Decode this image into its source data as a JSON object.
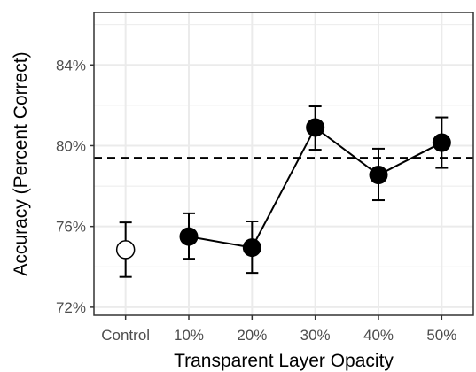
{
  "chart_data": {
    "type": "scatter",
    "xlabel": "Transparent Layer Opacity",
    "ylabel": "Accuracy (Percent Correct)",
    "categories": [
      "Control",
      "10%",
      "20%",
      "30%",
      "40%",
      "50%"
    ],
    "y_ticks": [
      72,
      76,
      80,
      84
    ],
    "y_tick_labels": [
      "72%",
      "76%",
      "80%",
      "84%"
    ],
    "ylim": [
      71.6,
      86.6
    ],
    "grid": true,
    "reference_line": {
      "y": 79.4,
      "style": "dashed"
    },
    "points": [
      {
        "x": "Control",
        "y": 74.85,
        "lower": 73.5,
        "upper": 76.2,
        "fill": "open"
      },
      {
        "x": "10%",
        "y": 75.5,
        "lower": 74.4,
        "upper": 76.65,
        "fill": "filled"
      },
      {
        "x": "20%",
        "y": 74.95,
        "lower": 73.7,
        "upper": 76.25,
        "fill": "filled"
      },
      {
        "x": "30%",
        "y": 80.9,
        "lower": 79.8,
        "upper": 81.95,
        "fill": "filled"
      },
      {
        "x": "40%",
        "y": 78.55,
        "lower": 77.3,
        "upper": 79.85,
        "fill": "filled"
      },
      {
        "x": "50%",
        "y": 80.15,
        "lower": 78.9,
        "upper": 81.4,
        "fill": "filled"
      }
    ],
    "connected_categories": [
      "10%",
      "20%",
      "30%",
      "40%",
      "50%"
    ],
    "colors": {
      "point": "#000000",
      "open_fill": "#ffffff",
      "grid": "#ebebeb",
      "panel_border": "#333333"
    }
  }
}
